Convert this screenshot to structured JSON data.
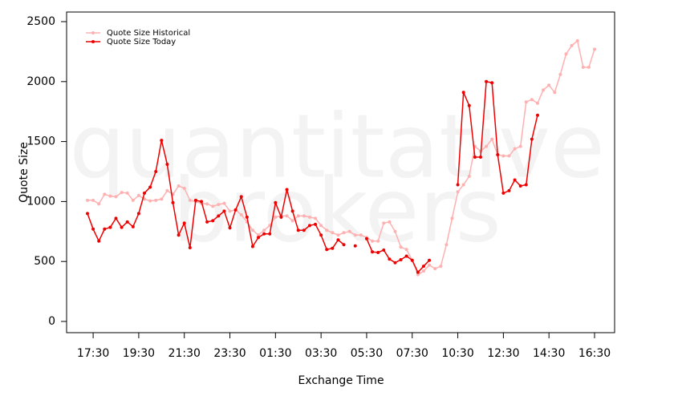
{
  "chart_data": {
    "type": "line",
    "watermark": [
      "quantitative",
      "brokers"
    ],
    "xlabel": "Exchange Time",
    "ylabel": "Quote Size",
    "categories": [
      null,
      "17:30",
      null,
      null,
      null,
      null,
      null,
      null,
      null,
      "19:30",
      null,
      null,
      null,
      null,
      null,
      null,
      null,
      "21:30",
      null,
      null,
      null,
      null,
      null,
      null,
      null,
      "23:30",
      null,
      null,
      null,
      null,
      null,
      null,
      null,
      "01:30",
      null,
      null,
      null,
      null,
      null,
      null,
      null,
      "03:30",
      null,
      null,
      null,
      null,
      null,
      null,
      null,
      "05:30",
      null,
      null,
      null,
      null,
      null,
      null,
      null,
      "07:30",
      null,
      null,
      null,
      null,
      null,
      null,
      null,
      "10:30",
      null,
      null,
      null,
      null,
      null,
      null,
      null,
      "12:30",
      null,
      null,
      null,
      null,
      null,
      null,
      null,
      "14:30",
      null,
      null,
      null,
      null,
      null,
      null,
      null,
      "16:30"
    ],
    "series": [
      {
        "name": "Quote Size Historical",
        "color": "#ffb0b0",
        "values": [
          1010,
          1010,
          980,
          1060,
          1045,
          1040,
          1075,
          1070,
          1010,
          1050,
          1020,
          1005,
          1010,
          1020,
          1090,
          1060,
          1130,
          1110,
          1010,
          1000,
          985,
          980,
          960,
          975,
          985,
          920,
          930,
          890,
          830,
          760,
          720,
          760,
          800,
          870,
          880,
          880,
          840,
          880,
          880,
          870,
          860,
          800,
          760,
          740,
          720,
          740,
          750,
          720,
          720,
          700,
          670,
          670,
          820,
          830,
          750,
          620,
          600,
          510,
          390,
          420,
          470,
          440,
          460,
          640,
          860,
          1080,
          1140,
          1210,
          1460,
          1420,
          1460,
          1520,
          1390,
          1380,
          1380,
          1440,
          1460,
          1830,
          1850,
          1820,
          1930,
          1970,
          1910,
          2060,
          2230,
          2300,
          2340,
          2120,
          2120,
          2270
        ]
      },
      {
        "name": "Quote Size Today",
        "color": "#ee0000",
        "values": [
          900,
          770,
          670,
          770,
          785,
          860,
          785,
          830,
          790,
          900,
          1070,
          1120,
          1250,
          1510,
          1310,
          990,
          720,
          820,
          615,
          1010,
          1000,
          830,
          840,
          880,
          920,
          780,
          930,
          1040,
          870,
          625,
          700,
          730,
          730,
          990,
          870,
          1100,
          920,
          760,
          760,
          800,
          810,
          720,
          600,
          610,
          680,
          640,
          null,
          630,
          null,
          690,
          580,
          575,
          595,
          520,
          490,
          515,
          545,
          510,
          410,
          460,
          510,
          null,
          null,
          null,
          null,
          1140,
          1910,
          1800,
          1370,
          1370,
          2000,
          1990,
          1390,
          1070,
          1090,
          1180,
          1130,
          1140,
          1520,
          1720,
          null,
          null,
          null,
          null,
          null,
          null,
          null,
          null,
          null,
          null
        ]
      }
    ],
    "ylim": [
      0,
      2500
    ],
    "yticks": [
      0,
      500,
      1000,
      1500,
      2000,
      2500
    ],
    "legend": "upper left"
  }
}
